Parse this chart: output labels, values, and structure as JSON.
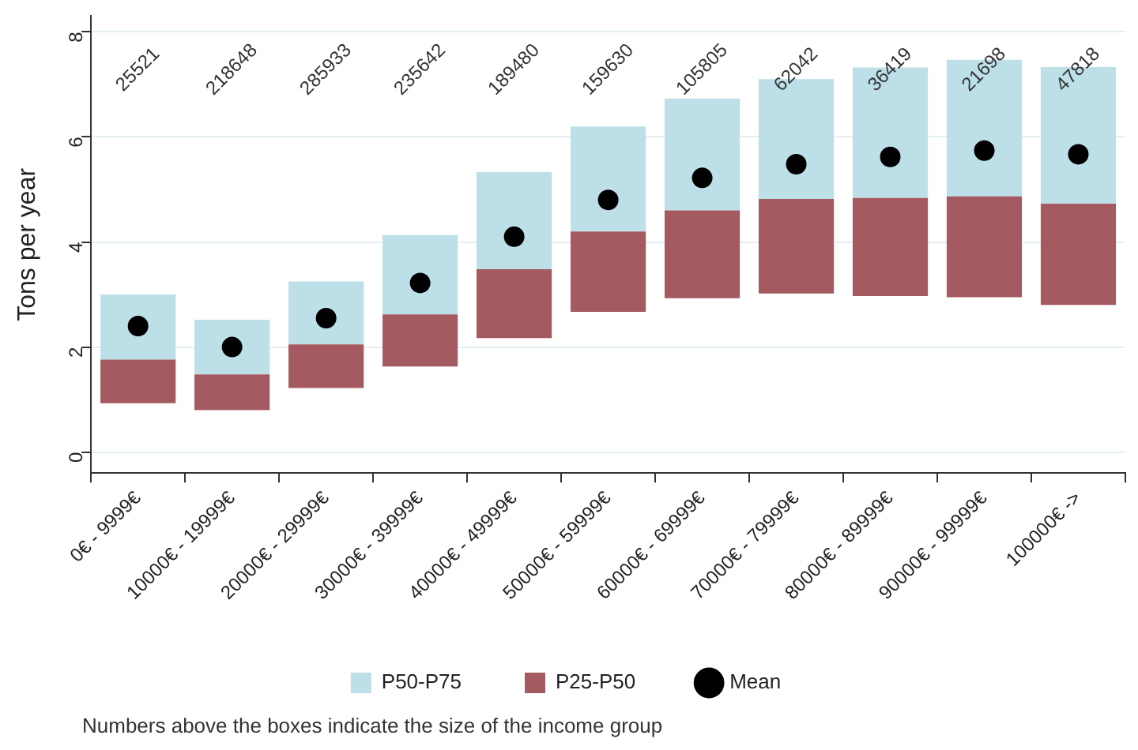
{
  "chart_data": {
    "type": "bar",
    "ylabel": "Tons per year",
    "categories": [
      "0€ - 9999€",
      "10000€ - 19999€",
      "20000€ - 29999€",
      "30000€ - 39999€",
      "40000€ - 49999€",
      "50000€ - 59999€",
      "60000€ - 69999€",
      "70000€ - 79999€",
      "80000€ - 89999€",
      "90000€ - 99999€",
      "100000€ ->"
    ],
    "series": [
      {
        "name": "P25-P50",
        "color": "#a45a60",
        "base": [
          0.93,
          0.8,
          1.22,
          1.63,
          2.17,
          2.67,
          2.93,
          3.02,
          2.97,
          2.95,
          2.8
        ],
        "values": [
          0.83,
          0.68,
          0.83,
          0.99,
          1.31,
          1.53,
          1.67,
          1.8,
          1.87,
          1.92,
          1.93
        ]
      },
      {
        "name": "P50-P75",
        "color": "#bcdfe8",
        "base": [
          1.76,
          1.48,
          2.05,
          2.62,
          3.48,
          4.2,
          4.6,
          4.82,
          4.84,
          4.87,
          4.73
        ],
        "values": [
          1.24,
          1.04,
          1.2,
          1.51,
          1.85,
          2.0,
          2.13,
          2.28,
          2.48,
          2.6,
          2.6
        ]
      },
      {
        "name": "Mean",
        "type": "scatter",
        "marker": "circle",
        "color": "#000000",
        "x": [
          "0€ - 9999€",
          "10000€ - 19999€",
          "20000€ - 29999€",
          "30000€ - 39999€",
          "40000€ - 49999€",
          "50000€ - 59999€",
          "60000€ - 69999€",
          "70000€ - 79999€",
          "80000€ - 89999€",
          "90000€ - 99999€",
          "100000€ ->"
        ],
        "values": [
          2.4,
          2.0,
          2.55,
          3.22,
          4.1,
          4.8,
          5.22,
          5.48,
          5.62,
          5.74,
          5.67
        ]
      }
    ],
    "ylim": [
      -0.4,
      8.3
    ],
    "yticks": [
      0,
      2,
      4,
      6,
      8
    ],
    "grid": "y",
    "legend": "bottom",
    "annotations": [
      "25521",
      "218648",
      "285933",
      "235642",
      "189480",
      "159630",
      "105805",
      "62042",
      "36419",
      "21698",
      "47818",
      "Numbers above the boxes indicate the size of the income group"
    ]
  }
}
